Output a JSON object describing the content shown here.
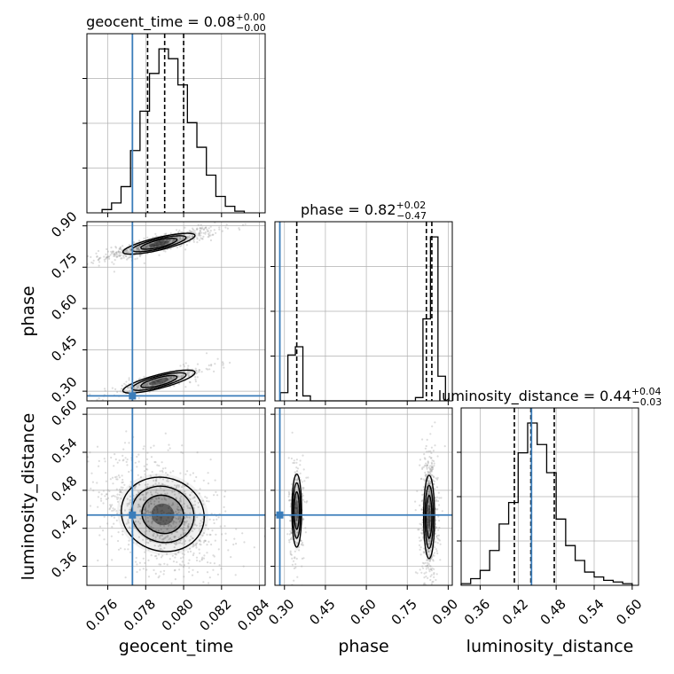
{
  "chart_data": {
    "type": "corner",
    "parameters": [
      "geocent_time",
      "phase",
      "luminosity_distance"
    ],
    "truths": {
      "geocent_time": 0.0773,
      "phase": 0.283,
      "luminosity_distance": 0.441
    },
    "colors": {
      "truth": "#3b7dba",
      "hist": "#000000",
      "grid": "#b0b0b0",
      "scatter": "#9a9a9a"
    },
    "titles": {
      "geocent_time": {
        "text": "geocent_time = 0.08",
        "plus": "+0.00",
        "minus": "−0.00"
      },
      "phase": {
        "text": "phase = 0.82",
        "plus": "+0.02",
        "minus": "−0.47"
      },
      "luminosity_distance": {
        "text": "luminosity_distance = 0.44",
        "plus": "+0.04",
        "minus": "−0.03"
      }
    },
    "axes": {
      "geocent_time": {
        "range": [
          0.0749,
          0.0843
        ],
        "ticks": [
          0.076,
          0.078,
          0.08,
          0.082,
          0.084
        ],
        "tick_labels": [
          "0.076",
          "0.078",
          "0.080",
          "0.082",
          "0.084"
        ],
        "label": "geocent_time"
      },
      "phase": {
        "range": [
          0.265,
          0.915
        ],
        "ticks": [
          0.3,
          0.45,
          0.6,
          0.75,
          0.9
        ],
        "tick_labels": [
          "0.30",
          "0.45",
          "0.60",
          "0.75",
          "0.90"
        ],
        "label": "phase"
      },
      "luminosity_distance": {
        "range": [
          0.33,
          0.61
        ],
        "ticks": [
          0.36,
          0.42,
          0.48,
          0.54,
          0.6
        ],
        "tick_labels": [
          "0.36",
          "0.42",
          "0.48",
          "0.54",
          "0.60"
        ],
        "label": "luminosity_distance"
      }
    },
    "marginals": {
      "geocent_time": {
        "bin_edges": [
          0.0757,
          0.0762,
          0.0767,
          0.0772,
          0.0777,
          0.0782,
          0.0787,
          0.0792,
          0.0797,
          0.0802,
          0.0807,
          0.0812,
          0.0817,
          0.0822,
          0.0827,
          0.0832
        ],
        "counts": [
          0.02,
          0.06,
          0.16,
          0.38,
          0.62,
          0.85,
          1.0,
          0.94,
          0.78,
          0.55,
          0.4,
          0.23,
          0.1,
          0.04,
          0.01
        ],
        "quantiles": [
          0.0781,
          0.079,
          0.08
        ]
      },
      "phase": {
        "bin_edges": [
          0.285,
          0.3125,
          0.34,
          0.3675,
          0.395,
          0.4225,
          0.45,
          0.4775,
          0.505,
          0.5325,
          0.56,
          0.5875,
          0.615,
          0.6425,
          0.67,
          0.6975,
          0.725,
          0.7525,
          0.78,
          0.8075,
          0.835,
          0.8625,
          0.89
        ],
        "counts": [
          0.05,
          0.28,
          0.33,
          0.03,
          0,
          0,
          0,
          0,
          0,
          0,
          0,
          0,
          0,
          0,
          0,
          0,
          0,
          0,
          0.02,
          0.5,
          1.0,
          0.15
        ],
        "quantiles": [
          0.345,
          0.82,
          0.84
        ]
      },
      "luminosity_distance": {
        "bin_edges": [
          0.33,
          0.345,
          0.36,
          0.375,
          0.39,
          0.405,
          0.42,
          0.435,
          0.45,
          0.465,
          0.48,
          0.495,
          0.51,
          0.525,
          0.54,
          0.555,
          0.57,
          0.585,
          0.6
        ],
        "counts": [
          0.01,
          0.04,
          0.09,
          0.21,
          0.37,
          0.5,
          0.8,
          0.98,
          0.85,
          0.68,
          0.4,
          0.24,
          0.15,
          0.08,
          0.05,
          0.03,
          0.02,
          0.01
        ],
        "quantiles": [
          0.414,
          0.44,
          0.477
        ]
      }
    },
    "joint": [
      {
        "x": "geocent_time",
        "y": "phase",
        "modes": [
          {
            "cx": 0.0787,
            "cy": 0.835,
            "spread_x": 0.00095,
            "spread_y": 0.018,
            "corr": 0.85,
            "weight": 0.72
          },
          {
            "cx": 0.0787,
            "cy": 0.335,
            "spread_x": 0.00095,
            "spread_y": 0.02,
            "corr": 0.85,
            "weight": 0.28
          }
        ]
      },
      {
        "x": "geocent_time",
        "y": "luminosity_distance",
        "modes": [
          {
            "cx": 0.0789,
            "cy": 0.442,
            "spread_x": 0.00105,
            "spread_y": 0.03,
            "corr": -0.35,
            "weight": 1.0
          }
        ]
      },
      {
        "x": "phase",
        "y": "luminosity_distance",
        "modes": [
          {
            "cx": 0.345,
            "cy": 0.448,
            "spread_x": 0.009,
            "spread_y": 0.028,
            "corr": 0.0,
            "weight": 0.28
          },
          {
            "cx": 0.83,
            "cy": 0.438,
            "spread_x": 0.01,
            "spread_y": 0.032,
            "corr": 0.0,
            "weight": 0.72
          }
        ]
      }
    ]
  }
}
